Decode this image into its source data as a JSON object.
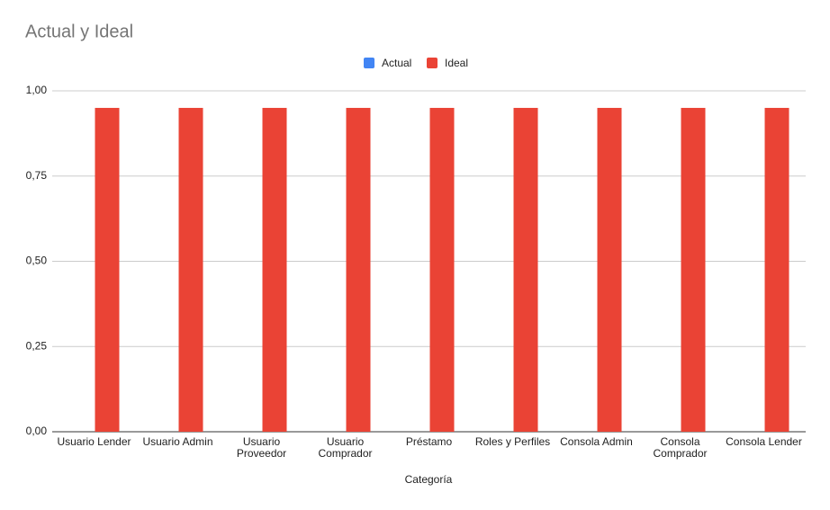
{
  "chart_data": {
    "type": "bar",
    "title": "Actual y Ideal",
    "x_label": "Categoría",
    "categories": [
      "Usuario Lender",
      "Usuario Admin",
      "Usuario Proveedor",
      "Usuario Comprador",
      "Préstamo",
      "Roles y Perfiles",
      "Consola Admin",
      "Consola Comprador",
      "Consola Lender"
    ],
    "series": [
      {
        "name": "Actual",
        "color": "#4285f4",
        "values": [
          0,
          0,
          0,
          0,
          0,
          0,
          0,
          0,
          0
        ]
      },
      {
        "name": "Ideal",
        "color": "#ea4335",
        "values": [
          0.95,
          0.95,
          0.95,
          0.95,
          0.95,
          0.95,
          0.95,
          0.95,
          0.95
        ]
      }
    ],
    "ylim": [
      0,
      1
    ],
    "yticks": [
      {
        "value": 0,
        "label": "0,00"
      },
      {
        "value": 0.25,
        "label": "0,25"
      },
      {
        "value": 0.5,
        "label": "0,50"
      },
      {
        "value": 0.75,
        "label": "0,75"
      },
      {
        "value": 1,
        "label": "1,00"
      }
    ],
    "grid": true,
    "legend": "top"
  }
}
